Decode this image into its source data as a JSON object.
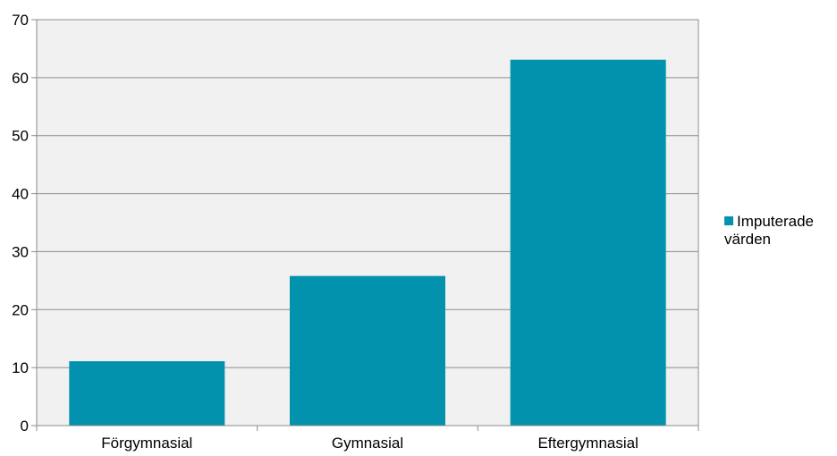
{
  "chart_data": {
    "type": "bar",
    "categories": [
      "Förgymnasial",
      "Gymnasial",
      "Eftergymnasial"
    ],
    "series": [
      {
        "name": "Imputerade värden",
        "values": [
          11.1,
          25.8,
          63.1
        ],
        "color": "#0392ad"
      }
    ],
    "ylim": [
      0,
      70
    ],
    "yticks": [
      0,
      10,
      20,
      30,
      40,
      50,
      60,
      70
    ],
    "grid": true,
    "plot_background": "#f1f1f1",
    "legend_position": "right"
  }
}
